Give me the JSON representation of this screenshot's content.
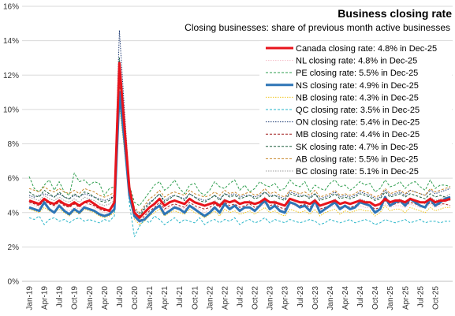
{
  "chart_data": {
    "type": "line",
    "title": "Business closing rate",
    "subtitle": "Closing businesses: share of previous month active businesses",
    "xlabel": "",
    "ylabel": "",
    "ylim": [
      0,
      16
    ],
    "y_ticks": [
      "0%",
      "2%",
      "4%",
      "6%",
      "8%",
      "10%",
      "12%",
      "14%",
      "16%"
    ],
    "x_tick_labels": [
      "Jan-19",
      "Apr-19",
      "Jul-19",
      "Oct-19",
      "Jan-20",
      "Apr-20",
      "Jul-20",
      "Oct-20",
      "Jan-21",
      "Apr-21",
      "Jul-21",
      "Oct-21",
      "Jan-22",
      "Apr-22",
      "Jul-22",
      "Oct-22",
      "Jan-23",
      "Apr-23",
      "Jul-23",
      "Oct-23",
      "Jan-24",
      "Apr-24",
      "Jul-24",
      "Oct-24",
      "Jan-25",
      "Apr-25",
      "Jul-25",
      "Oct-25"
    ],
    "legend_placement": "top-right",
    "grid": true,
    "series": [
      {
        "name": "Canada closing rate: 4.8% in Dec-25",
        "color": "#e8141c",
        "style": "solid",
        "width": 3,
        "values": [
          4.7,
          4.6,
          4.5,
          4.8,
          4.6,
          4.5,
          4.7,
          4.5,
          4.4,
          4.6,
          4.4,
          4.6,
          4.7,
          4.5,
          4.3,
          4.2,
          4.1,
          4.6,
          12.7,
          9.0,
          5.4,
          4.0,
          3.7,
          4.0,
          4.3,
          4.5,
          4.8,
          4.4,
          4.6,
          4.7,
          4.6,
          4.5,
          4.8,
          4.6,
          4.5,
          4.4,
          4.5,
          4.6,
          4.4,
          4.7,
          4.6,
          4.7,
          4.5,
          4.6,
          4.6,
          4.5,
          4.6,
          4.8,
          4.6,
          4.6,
          4.5,
          4.4,
          4.8,
          4.7,
          4.6,
          4.6,
          4.5,
          4.7,
          4.4,
          4.5,
          4.6,
          4.7,
          4.5,
          4.6,
          4.5,
          4.6,
          4.7,
          4.6,
          4.6,
          4.4,
          4.5,
          4.8,
          4.6,
          4.7,
          4.7,
          4.6,
          4.8,
          4.7,
          4.6,
          4.6,
          4.8,
          4.6,
          4.7,
          4.7,
          4.8
        ]
      },
      {
        "name": "NL closing rate: 4.8% in Dec-25",
        "color": "#f4b6c2",
        "style": "dotted",
        "width": 1,
        "values": [
          4.5,
          4.4,
          4.3,
          4.8,
          4.6,
          4.3,
          4.5,
          4.2,
          4.1,
          4.3,
          4.2,
          4.4,
          4.5,
          4.3,
          4.1,
          4.0,
          4.0,
          4.2,
          10.8,
          8.0,
          5.0,
          3.7,
          3.4,
          3.6,
          4.0,
          4.2,
          4.4,
          4.1,
          4.3,
          4.4,
          4.3,
          4.2,
          4.4,
          4.3,
          4.2,
          4.0,
          4.2,
          4.3,
          4.1,
          4.4,
          4.3,
          4.4,
          4.2,
          4.3,
          4.3,
          4.2,
          4.3,
          4.5,
          4.3,
          4.3,
          4.2,
          4.1,
          4.5,
          4.4,
          4.3,
          4.3,
          4.2,
          4.4,
          4.1,
          4.2,
          4.3,
          4.4,
          4.2,
          4.3,
          4.2,
          4.3,
          4.4,
          4.3,
          4.3,
          4.1,
          4.2,
          4.5,
          4.3,
          4.4,
          4.4,
          4.3,
          4.5,
          4.4,
          4.3,
          4.3,
          4.5,
          4.3,
          4.4,
          4.6,
          4.8
        ]
      },
      {
        "name": "PE closing rate: 5.5% in Dec-25",
        "color": "#2e9e4e",
        "style": "dashed",
        "width": 1,
        "values": [
          6.1,
          5.4,
          5.2,
          5.6,
          5.9,
          5.3,
          5.8,
          5.2,
          5.0,
          6.3,
          5.8,
          5.9,
          5.6,
          5.8,
          5.7,
          5.0,
          5.4,
          5.5,
          11.8,
          8.8,
          5.6,
          4.6,
          4.4,
          4.8,
          5.2,
          5.6,
          5.8,
          5.3,
          5.5,
          5.9,
          5.4,
          5.1,
          5.6,
          5.7,
          5.2,
          5.0,
          5.3,
          5.8,
          5.5,
          5.4,
          5.7,
          5.9,
          5.3,
          5.6,
          5.2,
          5.4,
          5.8,
          5.6,
          5.5,
          5.7,
          5.3,
          5.4,
          5.9,
          5.6,
          5.5,
          5.8,
          5.2,
          5.6,
          5.4,
          5.3,
          5.7,
          5.9,
          5.5,
          5.6,
          5.3,
          5.5,
          5.8,
          5.6,
          5.7,
          5.2,
          5.4,
          5.9,
          5.5,
          5.6,
          5.8,
          5.4,
          5.7,
          5.8,
          5.5,
          5.3,
          5.9,
          5.4,
          5.6,
          5.6,
          5.5
        ]
      },
      {
        "name": "NS closing rate: 4.9% in Dec-25",
        "color": "#2e75b6",
        "style": "solid",
        "width": 3,
        "values": [
          4.3,
          4.2,
          4.1,
          4.6,
          4.2,
          4.0,
          4.4,
          4.1,
          3.9,
          4.2,
          4.0,
          4.3,
          4.2,
          4.1,
          3.9,
          3.8,
          3.9,
          4.2,
          11.0,
          8.2,
          5.0,
          3.8,
          3.5,
          3.6,
          3.9,
          4.2,
          4.4,
          3.9,
          4.1,
          4.3,
          4.2,
          4.0,
          4.4,
          4.2,
          4.0,
          3.8,
          4.0,
          4.3,
          4.0,
          4.5,
          4.2,
          4.4,
          4.1,
          4.3,
          4.3,
          4.1,
          4.4,
          4.7,
          4.2,
          4.4,
          4.1,
          4.0,
          4.6,
          4.5,
          4.3,
          4.4,
          4.1,
          4.7,
          4.0,
          4.2,
          4.4,
          4.6,
          4.2,
          4.4,
          4.2,
          4.3,
          4.6,
          4.5,
          4.4,
          4.0,
          4.2,
          4.9,
          4.4,
          4.6,
          4.7,
          4.4,
          4.8,
          4.6,
          4.4,
          4.3,
          4.8,
          4.4,
          4.6,
          4.8,
          4.9
        ]
      },
      {
        "name": "NB closing rate: 4.3% in Dec-25",
        "color": "#f0c419",
        "style": "dotted",
        "width": 1,
        "values": [
          4.2,
          4.1,
          4.0,
          4.3,
          4.1,
          4.0,
          4.2,
          4.0,
          3.8,
          4.1,
          3.9,
          4.2,
          4.1,
          4.0,
          3.8,
          3.7,
          3.8,
          4.0,
          10.2,
          7.6,
          4.8,
          3.6,
          3.3,
          3.5,
          3.8,
          4.0,
          4.2,
          3.8,
          4.0,
          4.1,
          4.0,
          3.9,
          4.2,
          4.0,
          3.9,
          3.7,
          3.9,
          4.1,
          3.8,
          4.2,
          4.0,
          4.1,
          3.9,
          4.0,
          4.1,
          3.9,
          4.1,
          4.3,
          4.0,
          4.1,
          3.9,
          3.8,
          4.2,
          4.1,
          4.0,
          4.1,
          3.9,
          4.2,
          3.8,
          4.0,
          4.1,
          4.2,
          3.9,
          4.1,
          4.0,
          4.1,
          4.2,
          4.1,
          4.1,
          3.8,
          4.0,
          4.4,
          4.1,
          4.2,
          4.2,
          4.0,
          4.3,
          4.2,
          4.1,
          4.0,
          4.3,
          4.1,
          4.2,
          4.3,
          4.3
        ]
      },
      {
        "name": "QC closing rate: 3.5% in Dec-25",
        "color": "#26b5c8",
        "style": "dashed",
        "width": 1,
        "values": [
          3.7,
          3.6,
          3.8,
          3.3,
          3.6,
          3.7,
          3.5,
          3.6,
          3.4,
          3.6,
          3.7,
          3.5,
          3.6,
          3.5,
          3.4,
          3.6,
          3.5,
          3.8,
          12.0,
          8.5,
          4.5,
          2.6,
          3.2,
          3.6,
          3.4,
          3.8,
          3.6,
          3.3,
          3.5,
          3.7,
          3.4,
          3.6,
          3.5,
          3.4,
          3.7,
          3.3,
          3.5,
          3.6,
          3.4,
          3.6,
          3.5,
          3.7,
          3.3,
          3.5,
          3.6,
          3.4,
          3.5,
          3.7,
          3.4,
          3.6,
          3.5,
          3.4,
          3.6,
          3.5,
          3.4,
          3.5,
          3.6,
          3.5,
          3.3,
          3.4,
          3.6,
          3.5,
          3.4,
          3.5,
          3.6,
          3.4,
          3.5,
          3.6,
          3.5,
          3.3,
          3.4,
          3.6,
          3.5,
          3.4,
          3.5,
          3.6,
          3.4,
          3.5,
          3.6,
          3.4,
          3.5,
          3.5,
          3.4,
          3.5,
          3.5
        ]
      },
      {
        "name": "ON closing rate: 5.4% in Dec-25",
        "color": "#1f3b73",
        "style": "dotted",
        "width": 1,
        "values": [
          5.0,
          4.9,
          5.0,
          5.1,
          5.0,
          4.9,
          5.1,
          4.9,
          4.8,
          5.0,
          4.9,
          5.1,
          5.0,
          4.9,
          4.8,
          4.7,
          4.8,
          5.0,
          14.6,
          10.0,
          5.6,
          4.2,
          3.9,
          4.3,
          4.6,
          4.8,
          5.1,
          4.7,
          4.9,
          5.0,
          4.9,
          4.8,
          5.1,
          4.9,
          4.8,
          4.7,
          4.8,
          5.0,
          4.8,
          5.1,
          5.0,
          5.1,
          4.9,
          5.0,
          5.0,
          4.9,
          5.0,
          5.2,
          5.0,
          5.0,
          4.9,
          4.8,
          5.2,
          5.1,
          5.0,
          5.0,
          4.9,
          5.1,
          4.8,
          4.9,
          5.0,
          5.2,
          4.9,
          5.0,
          4.9,
          5.0,
          5.2,
          5.1,
          5.0,
          4.8,
          4.9,
          5.3,
          5.0,
          5.1,
          5.2,
          5.0,
          5.3,
          5.2,
          5.1,
          5.0,
          5.3,
          5.1,
          5.2,
          5.3,
          5.4
        ]
      },
      {
        "name": "MB closing rate: 4.4% in Dec-25",
        "color": "#a11d1d",
        "style": "dashed",
        "width": 1,
        "values": [
          4.6,
          4.5,
          4.4,
          4.7,
          4.5,
          4.4,
          4.6,
          4.4,
          4.3,
          4.5,
          4.3,
          4.6,
          4.5,
          4.4,
          4.2,
          4.1,
          4.2,
          4.4,
          11.5,
          8.4,
          5.1,
          3.8,
          3.5,
          3.8,
          4.1,
          4.3,
          4.6,
          4.2,
          4.4,
          4.5,
          4.4,
          4.3,
          4.6,
          4.4,
          4.3,
          4.2,
          4.3,
          4.5,
          4.3,
          4.6,
          4.4,
          4.5,
          4.3,
          4.4,
          4.5,
          4.3,
          4.4,
          4.6,
          4.4,
          4.5,
          4.3,
          4.2,
          4.6,
          4.5,
          4.4,
          4.5,
          4.3,
          4.6,
          4.2,
          4.3,
          4.4,
          4.6,
          4.3,
          4.4,
          4.3,
          4.4,
          4.6,
          4.5,
          4.4,
          4.2,
          4.3,
          4.7,
          4.4,
          4.5,
          4.6,
          4.4,
          4.6,
          4.5,
          4.4,
          4.3,
          4.6,
          4.4,
          4.5,
          4.5,
          4.4
        ]
      },
      {
        "name": "SK closing rate: 4.7% in Dec-25",
        "color": "#1b5e3b",
        "style": "dashed",
        "width": 1,
        "values": [
          5.2,
          5.0,
          4.9,
          5.3,
          5.1,
          4.9,
          5.2,
          4.9,
          4.8,
          5.1,
          4.9,
          5.2,
          5.1,
          4.9,
          4.7,
          4.6,
          4.7,
          5.0,
          13.0,
          9.4,
          5.3,
          4.0,
          3.8,
          4.2,
          4.5,
          4.8,
          5.1,
          4.6,
          4.8,
          5.0,
          4.9,
          4.7,
          5.1,
          4.9,
          4.7,
          4.6,
          4.8,
          5.0,
          4.7,
          5.1,
          4.9,
          5.0,
          4.8,
          4.9,
          5.0,
          4.8,
          4.9,
          5.2,
          4.9,
          5.0,
          4.8,
          4.7,
          5.1,
          5.0,
          4.9,
          5.0,
          4.8,
          5.1,
          4.7,
          4.8,
          4.9,
          5.1,
          4.8,
          4.9,
          4.8,
          4.9,
          5.1,
          5.0,
          4.9,
          4.7,
          4.8,
          5.2,
          4.9,
          5.0,
          5.1,
          4.9,
          5.1,
          5.0,
          4.9,
          4.8,
          5.1,
          4.9,
          5.0,
          4.9,
          4.7
        ]
      },
      {
        "name": "AB closing rate: 5.5% in Dec-25",
        "color": "#c8862a",
        "style": "dashed",
        "width": 1,
        "values": [
          5.4,
          5.3,
          5.2,
          5.5,
          5.3,
          5.2,
          5.4,
          5.2,
          5.1,
          5.3,
          5.1,
          5.4,
          5.3,
          5.2,
          5.0,
          4.9,
          5.0,
          5.2,
          12.2,
          9.0,
          5.5,
          4.3,
          4.0,
          4.4,
          4.8,
          5.0,
          5.3,
          4.9,
          5.1,
          5.2,
          5.1,
          5.0,
          5.3,
          5.1,
          5.0,
          4.9,
          5.0,
          5.2,
          5.0,
          5.3,
          5.1,
          5.2,
          5.0,
          5.1,
          5.2,
          5.0,
          5.1,
          5.4,
          5.1,
          5.2,
          5.0,
          4.9,
          5.3,
          5.2,
          5.1,
          5.2,
          5.0,
          5.3,
          4.9,
          5.0,
          5.1,
          5.3,
          5.0,
          5.1,
          5.0,
          5.1,
          5.3,
          5.2,
          5.1,
          4.9,
          5.0,
          5.4,
          5.1,
          5.2,
          5.3,
          5.1,
          5.3,
          5.2,
          5.1,
          5.0,
          5.4,
          5.2,
          5.3,
          5.4,
          5.5
        ]
      },
      {
        "name": "BC closing rate: 5.1% in Dec-25",
        "color": "#9a9a9a",
        "style": "dotted",
        "width": 1,
        "values": [
          4.9,
          4.8,
          4.7,
          5.0,
          4.8,
          4.7,
          4.9,
          4.7,
          4.6,
          4.8,
          4.6,
          4.9,
          4.8,
          4.7,
          4.5,
          4.4,
          4.5,
          4.7,
          11.2,
          8.2,
          5.0,
          3.9,
          3.6,
          4.0,
          4.3,
          4.6,
          4.8,
          4.4,
          4.6,
          4.7,
          4.6,
          4.5,
          4.8,
          4.6,
          4.5,
          4.4,
          4.5,
          4.7,
          4.5,
          4.8,
          4.6,
          4.7,
          4.5,
          4.6,
          4.7,
          4.5,
          4.6,
          4.9,
          4.6,
          4.7,
          4.5,
          4.4,
          4.8,
          4.7,
          4.6,
          4.7,
          4.5,
          4.8,
          4.4,
          4.5,
          4.6,
          4.8,
          4.5,
          4.6,
          4.5,
          4.6,
          4.8,
          4.7,
          4.6,
          4.4,
          4.5,
          4.9,
          4.6,
          4.7,
          4.8,
          4.6,
          4.8,
          4.7,
          4.6,
          4.5,
          4.9,
          4.7,
          4.8,
          4.9,
          5.1
        ]
      }
    ]
  }
}
